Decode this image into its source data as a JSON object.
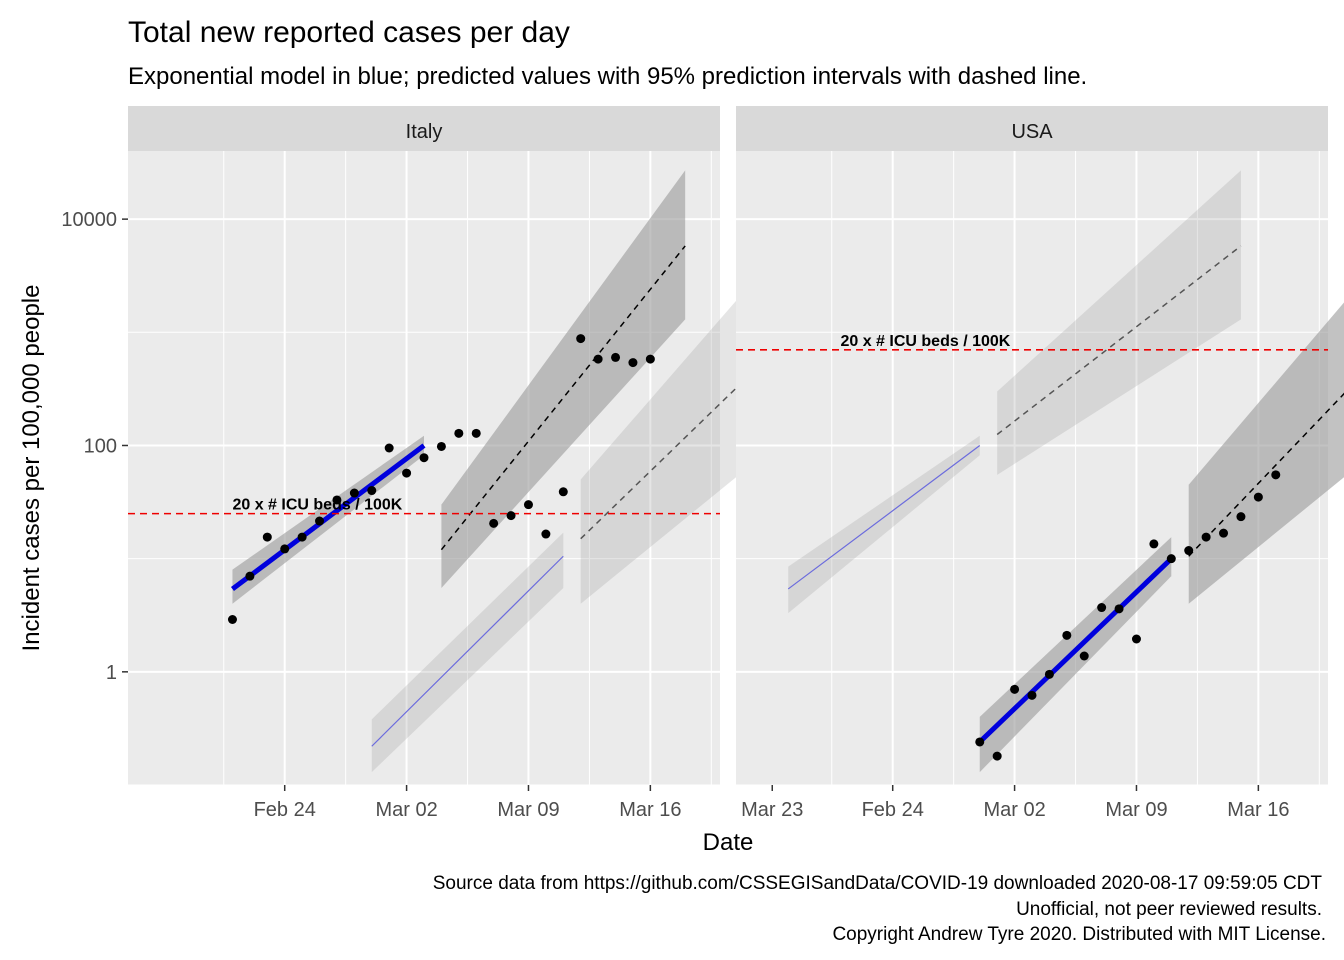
{
  "chart_data": {
    "type": "scatter",
    "title": "Total new reported cases per day",
    "subtitle": "Exponential model in blue; predicted values with 95% prediction intervals with dashed line.",
    "xlabel": "Date",
    "ylabel": "Incident cases per 100,000 people",
    "y_scale": "log10",
    "y_ticks": [
      {
        "value": 1,
        "label": "1"
      },
      {
        "value": 100,
        "label": "100"
      },
      {
        "value": 10000,
        "label": "10000"
      }
    ],
    "y_range": [
      0.1,
      40000
    ],
    "x_range_days": [
      -6,
      28
    ],
    "x_ticks": [
      {
        "day": 3,
        "label": "Feb 24"
      },
      {
        "day": 10,
        "label": "Mar 02"
      },
      {
        "day": 17,
        "label": "Mar 09"
      },
      {
        "day": 24,
        "label": "Mar 16"
      },
      {
        "day": 31,
        "label": "Mar 23"
      }
    ],
    "x_origin_note": "day 0 = Feb 21",
    "hline_label": "20 x # ICU beds / 100K",
    "colors": {
      "points": "#000000",
      "fit_line": "#0000dd",
      "other_fit_line": "#6b6bdd",
      "hline": "#ee0000",
      "ribbon": "#999999",
      "panel_bg": "#ebebeb",
      "strip_bg": "#d9d9d9",
      "grid": "#ffffff"
    },
    "panels": [
      {
        "name": "Italy",
        "hline": 25,
        "points": [
          {
            "day": 0,
            "y": 2.9
          },
          {
            "day": 1,
            "y": 7
          },
          {
            "day": 2,
            "y": 15.5
          },
          {
            "day": 3,
            "y": 12.2
          },
          {
            "day": 4,
            "y": 15.5
          },
          {
            "day": 5,
            "y": 21.5
          },
          {
            "day": 6,
            "y": 33
          },
          {
            "day": 7,
            "y": 38
          },
          {
            "day": 8,
            "y": 40
          },
          {
            "day": 9,
            "y": 95
          },
          {
            "day": 10,
            "y": 57
          },
          {
            "day": 11,
            "y": 78
          },
          {
            "day": 12,
            "y": 98
          },
          {
            "day": 13,
            "y": 128
          },
          {
            "day": 14,
            "y": 128
          },
          {
            "day": 15,
            "y": 20.5
          },
          {
            "day": 16,
            "y": 24
          },
          {
            "day": 17,
            "y": 30
          },
          {
            "day": 18,
            "y": 16.5
          },
          {
            "day": 19,
            "y": 39
          },
          {
            "day": 20,
            "y": 880
          },
          {
            "day": 21,
            "y": 580
          },
          {
            "day": 22,
            "y": 600
          },
          {
            "day": 23,
            "y": 540
          },
          {
            "day": 24,
            "y": 580
          }
        ],
        "fit": {
          "day_start": 0,
          "y_start": 5.4,
          "day_end": 11,
          "y_end": 100
        },
        "fit_band_lower_start": 4,
        "fit_band_upper_start": 8,
        "fit_band_lower_end": 82,
        "fit_band_upper_end": 122,
        "pred": [
          {
            "day": 12,
            "fit": 12,
            "lo": 5.5,
            "hi": 30
          },
          {
            "day": 26,
            "fit": 5800,
            "lo": 1300,
            "hi": 27000
          }
        ],
        "other_fit": {
          "day_start": 8,
          "y_start": 0.22,
          "day_end": 19,
          "y_end": 10.5,
          "lo_start": 0.13,
          "hi_start": 0.38,
          "lo_end": 5.5,
          "hi_end": 17
        },
        "other_pred": [
          {
            "day": 20,
            "fit": 15,
            "lo": 4,
            "hi": 50
          },
          {
            "day": 33,
            "fit": 1300,
            "lo": 170,
            "hi": 10000
          }
        ]
      },
      {
        "name": "USA",
        "hline": 700,
        "points": [
          {
            "day": 8,
            "y": 0.24
          },
          {
            "day": 9,
            "y": 0.18
          },
          {
            "day": 10,
            "y": 0.7
          },
          {
            "day": 11,
            "y": 0.62
          },
          {
            "day": 12,
            "y": 0.95
          },
          {
            "day": 13,
            "y": 2.1
          },
          {
            "day": 14,
            "y": 1.38
          },
          {
            "day": 15,
            "y": 3.7
          },
          {
            "day": 16,
            "y": 3.6
          },
          {
            "day": 17,
            "y": 1.95
          },
          {
            "day": 18,
            "y": 13.5
          },
          {
            "day": 19,
            "y": 10
          },
          {
            "day": 20,
            "y": 11.8
          },
          {
            "day": 21,
            "y": 15.5
          },
          {
            "day": 22,
            "y": 16.8
          },
          {
            "day": 23,
            "y": 23.5
          },
          {
            "day": 24,
            "y": 35
          },
          {
            "day": 25,
            "y": 55
          }
        ],
        "fit": {
          "day_start": 8,
          "y_start": 0.24,
          "day_end": 19,
          "y_end": 10
        },
        "fit_band_lower_start": 0.13,
        "fit_band_upper_start": 0.4,
        "fit_band_lower_end": 7,
        "fit_band_upper_end": 15.5,
        "pred": [
          {
            "day": 20,
            "fit": 10.5,
            "lo": 4,
            "hi": 45
          },
          {
            "day": 33,
            "fit": 1300,
            "lo": 170,
            "hi": 10000
          }
        ],
        "other_fit": {
          "day_start": -3,
          "y_start": 5.4,
          "day_end": 8,
          "y_end": 100,
          "lo_start": 3.3,
          "hi_start": 8.5,
          "lo_end": 82,
          "hi_end": 122
        },
        "other_pred": [
          {
            "day": 9,
            "fit": 125,
            "lo": 55,
            "hi": 300
          },
          {
            "day": 23,
            "fit": 5800,
            "lo": 1300,
            "hi": 27000
          }
        ]
      }
    ]
  },
  "caption": {
    "line1": "Source data from https://github.com/CSSEGISandData/COVID-19 downloaded  2020-08-17 09:59:05 CDT",
    "line2": "Unofficial, not peer reviewed results.",
    "line3": "Copyright Andrew Tyre 2020. Distributed with MIT License."
  }
}
